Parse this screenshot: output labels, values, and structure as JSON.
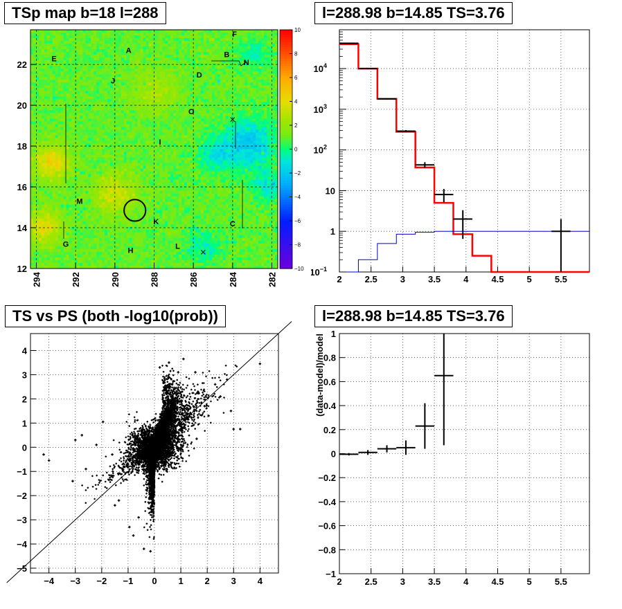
{
  "panels": {
    "map": {
      "title": "TSp map b=18 l=288"
    },
    "spectrum": {
      "title": "l=288.98 b=14.85 TS=3.76"
    },
    "scatter": {
      "title": "TS vs PS (both -log10(prob))"
    },
    "residual": {
      "title": "l=288.98 b=14.85 TS=3.76"
    }
  },
  "chart_data": [
    {
      "id": "map",
      "type": "heatmap",
      "title": "TSp map b=18 l=288",
      "x_ticks": [
        294,
        292,
        290,
        288,
        286,
        284,
        282
      ],
      "xlim": [
        294.3,
        281.7
      ],
      "y_ticks": [
        12,
        14,
        16,
        18,
        20,
        22
      ],
      "ylim": [
        12,
        23.7
      ],
      "colorbar_ticks": [
        10,
        8,
        6,
        4,
        2,
        0,
        -2,
        -4,
        -6,
        -8,
        -10
      ],
      "zlim": [
        -10,
        10
      ],
      "dominant_value": 1,
      "region_labels": [
        {
          "text": "A",
          "x": 289.3,
          "y": 22.7
        },
        {
          "text": "B",
          "x": 284.3,
          "y": 22.5
        },
        {
          "text": "C",
          "x": 284.0,
          "y": 14.2
        },
        {
          "text": "D",
          "x": 285.7,
          "y": 21.5
        },
        {
          "text": "E",
          "x": 293.1,
          "y": 22.3
        },
        {
          "text": "F",
          "x": 283.9,
          "y": 23.5
        },
        {
          "text": "G",
          "x": 292.5,
          "y": 13.2
        },
        {
          "text": "H",
          "x": 289.2,
          "y": 12.9
        },
        {
          "text": "I",
          "x": 287.7,
          "y": 18.2
        },
        {
          "text": "J",
          "x": 290.1,
          "y": 21.2
        },
        {
          "text": "K",
          "x": 287.9,
          "y": 14.3
        },
        {
          "text": "L",
          "x": 286.8,
          "y": 13.1
        },
        {
          "text": "M",
          "x": 291.8,
          "y": 15.3
        },
        {
          "text": "N",
          "x": 283.3,
          "y": 22.1
        },
        {
          "text": "O",
          "x": 286.1,
          "y": 19.7
        }
      ],
      "cross_markers": [
        {
          "x": 284.0,
          "y": 19.3
        },
        {
          "x": 285.5,
          "y": 12.8
        }
      ],
      "circle": {
        "l": 288.98,
        "b": 14.85,
        "radius_deg": 0.55
      }
    },
    {
      "id": "spectrum",
      "type": "line",
      "title": "l=288.98 b=14.85 TS=3.76",
      "xlabel": "",
      "ylabel": "",
      "log_y": true,
      "xlim": [
        2,
        5.95
      ],
      "ylim": [
        0.1,
        90000
      ],
      "x_ticks": [
        2,
        2.5,
        3,
        3.5,
        4,
        4.5,
        5,
        5.5
      ],
      "y_ticks": [
        {
          "v": 0.1,
          "label": "10^-1"
        },
        {
          "v": 1,
          "label": "1"
        },
        {
          "v": 10,
          "label": "10"
        },
        {
          "v": 100,
          "label": "10^2"
        },
        {
          "v": 1000,
          "label": "10^3"
        },
        {
          "v": 10000,
          "label": "10^4"
        }
      ],
      "bin_edges": [
        2.0,
        2.3,
        2.6,
        2.9,
        3.2,
        3.5,
        3.8,
        4.1,
        4.4,
        4.7,
        5.0,
        5.3,
        5.6,
        5.95
      ],
      "series": [
        {
          "name": "",
          "color": "#ff0000",
          "style": "hist",
          "values": [
            40000,
            10000,
            1800,
            280,
            37,
            5,
            0.85,
            0.25,
            0.1,
            0.1,
            0.1,
            0.1,
            0.1
          ]
        },
        {
          "name": "",
          "color": "#0000cc",
          "style": "hist",
          "values": [
            0.1,
            0.2,
            0.5,
            0.85,
            0.95,
            1.0,
            1.0,
            1.0,
            1.0,
            1.0,
            1.0,
            1.0,
            1.0
          ]
        },
        {
          "name": "",
          "color": "#000000",
          "style": "points",
          "points": [
            {
              "x": 2.15,
              "y": 42000,
              "xerr": 0.15,
              "ylo": 41500,
              "yhi": 42500
            },
            {
              "x": 2.45,
              "y": 10000,
              "xerr": 0.15,
              "ylo": 9900,
              "yhi": 10100
            },
            {
              "x": 2.75,
              "y": 1800,
              "xerr": 0.15,
              "ylo": 1750,
              "yhi": 1850
            },
            {
              "x": 3.05,
              "y": 290,
              "xerr": 0.15,
              "ylo": 272,
              "yhi": 308
            },
            {
              "x": 3.35,
              "y": 43,
              "xerr": 0.15,
              "ylo": 36,
              "yhi": 50
            },
            {
              "x": 3.65,
              "y": 8,
              "xerr": 0.15,
              "ylo": 5.2,
              "yhi": 11
            },
            {
              "x": 3.95,
              "y": 2,
              "xerr": 0.15,
              "ylo": 0.65,
              "yhi": 3.3
            },
            {
              "x": 5.5,
              "y": 1,
              "xerr": 0.15,
              "ylo": 0.1,
              "yhi": 2
            }
          ]
        }
      ]
    },
    {
      "id": "scatter",
      "type": "scatter",
      "title": "TS vs PS (both -log10(prob))",
      "xlabel": "",
      "ylabel": "",
      "xlim": [
        -4.7,
        4.7
      ],
      "ylim": [
        -5.2,
        4.7
      ],
      "x_ticks": [
        -4,
        -3,
        -2,
        -1,
        0,
        1,
        2,
        3,
        4
      ],
      "y_ticks": [
        -5,
        -4,
        -3,
        -2,
        -1,
        0,
        1,
        2,
        3,
        4
      ],
      "diagonal": true,
      "isolated_points": [
        {
          "x": -4.2,
          "y": -0.3
        },
        {
          "x": -4.0,
          "y": -0.55
        },
        {
          "x": -3.1,
          "y": -1.4
        },
        {
          "x": -3.0,
          "y": 0.3
        },
        {
          "x": -2.75,
          "y": 0.5
        },
        {
          "x": -2.6,
          "y": -0.9
        },
        {
          "x": -2.2,
          "y": 0.1
        },
        {
          "x": -1.95,
          "y": 1.05
        },
        {
          "x": -1.5,
          "y": -2.4
        },
        {
          "x": -1.35,
          "y": -2.2
        },
        {
          "x": -0.95,
          "y": -3.3
        },
        {
          "x": -0.8,
          "y": -3.65
        },
        {
          "x": -0.4,
          "y": -4.2
        },
        {
          "x": -0.15,
          "y": -4.3
        },
        {
          "x": 0.55,
          "y": 3.5
        },
        {
          "x": 1.1,
          "y": 3.65
        },
        {
          "x": 1.55,
          "y": 3.1
        },
        {
          "x": 2.5,
          "y": 2.1
        },
        {
          "x": 2.9,
          "y": 1.5
        },
        {
          "x": 3.0,
          "y": 0.75
        },
        {
          "x": 3.25,
          "y": 0.75
        },
        {
          "x": 4.0,
          "y": 3.45
        },
        {
          "x": 2.3,
          "y": 2.6
        },
        {
          "x": 2.75,
          "y": 2.8
        },
        {
          "x": 1.9,
          "y": 1.7
        },
        {
          "x": 1.6,
          "y": 0.35
        },
        {
          "x": -1.0,
          "y": -0.7
        },
        {
          "x": -1.6,
          "y": -0.3
        },
        {
          "x": 2.05,
          "y": 1.3
        },
        {
          "x": -0.6,
          "y": -2.9
        },
        {
          "x": 0.2,
          "y": 3.3
        },
        {
          "x": 0.9,
          "y": 3.1
        }
      ]
    },
    {
      "id": "residual",
      "type": "scatter",
      "title": "l=288.98 b=14.85 TS=3.76",
      "xlabel": "",
      "ylabel": "(data-model)/model",
      "xlim": [
        2,
        5.95
      ],
      "ylim": [
        -1,
        1
      ],
      "x_ticks": [
        2,
        2.5,
        3,
        3.5,
        4,
        4.5,
        5,
        5.5
      ],
      "y_ticks": [
        -1,
        -0.8,
        -0.6,
        -0.4,
        -0.2,
        0,
        0.2,
        0.4,
        0.6,
        0.8,
        1
      ],
      "points": [
        {
          "x": 2.15,
          "y": -0.005,
          "xerr": 0.15,
          "ylo": -0.015,
          "yhi": 0.005
        },
        {
          "x": 2.45,
          "y": 0.01,
          "xerr": 0.15,
          "ylo": -0.01,
          "yhi": 0.03
        },
        {
          "x": 2.75,
          "y": 0.04,
          "xerr": 0.15,
          "ylo": 0.01,
          "yhi": 0.07
        },
        {
          "x": 3.05,
          "y": 0.05,
          "xerr": 0.15,
          "ylo": -0.01,
          "yhi": 0.11
        },
        {
          "x": 3.35,
          "y": 0.23,
          "xerr": 0.15,
          "ylo": 0.04,
          "yhi": 0.42
        },
        {
          "x": 3.65,
          "y": 0.65,
          "xerr": 0.15,
          "ylo": 0.07,
          "yhi": 1.0
        }
      ]
    }
  ]
}
